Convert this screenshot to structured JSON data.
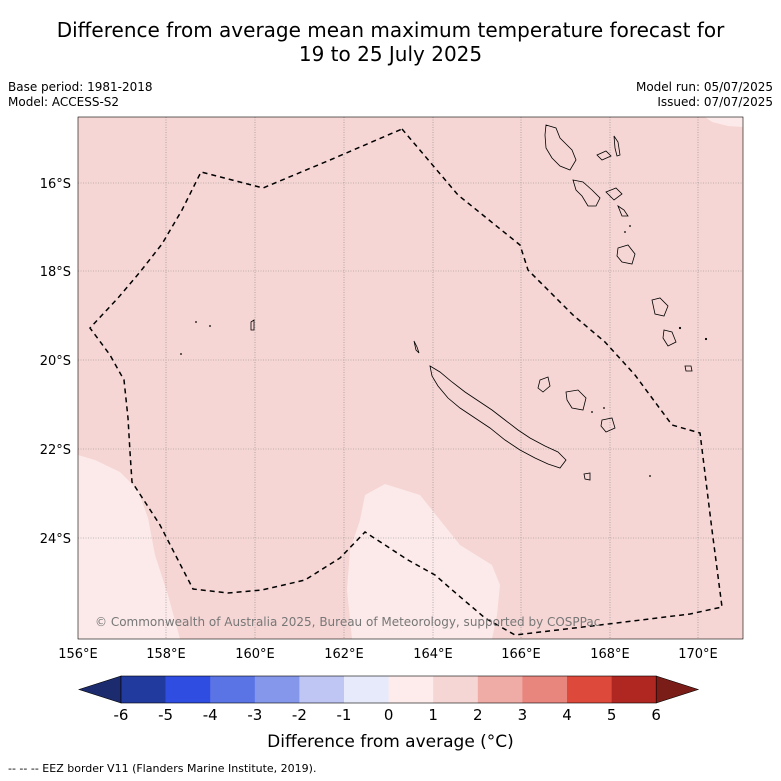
{
  "title_line1": "Difference from average mean maximum temperature forecast for",
  "title_line2": "19 to 25 July 2025",
  "base_period": "Base period: 1981-2018",
  "model": "Model: ACCESS-S2",
  "model_run": "Model run: 05/07/2025",
  "issued": "Issued: 07/07/2025",
  "copyright": "© Commonwealth of Australia 2025, Bureau of Meteorology, supported by COSPPac",
  "lat_labels": [
    "16°S",
    "18°S",
    "20°S",
    "22°S",
    "24°S"
  ],
  "lon_labels": [
    "156°E",
    "158°E",
    "160°E",
    "162°E",
    "164°E",
    "166°E",
    "168°E",
    "170°E"
  ],
  "colorbar": {
    "ticks": [
      "-6",
      "-5",
      "-4",
      "-3",
      "-2",
      "-1",
      "0",
      "1",
      "2",
      "3",
      "4",
      "5",
      "6"
    ],
    "colors": [
      "#213a9e",
      "#2f4de0",
      "#5a74e6",
      "#8597ea",
      "#bfc6f3",
      "#e7eafa",
      "#fdeceb",
      "#f5d6d4",
      "#efaca6",
      "#e8857d",
      "#dd4a3c",
      "#b02620"
    ],
    "low_extend_color": "#1c2a6e",
    "high_extend_color": "#7a1c17",
    "label": "Difference from average (°C)"
  },
  "footnote": "-- -- -- EEZ border V11 (Flanders Marine Institute, 2019).",
  "colors": {
    "region_0_1": "#fbeae9",
    "region_1_2": "#f5d6d4"
  }
}
